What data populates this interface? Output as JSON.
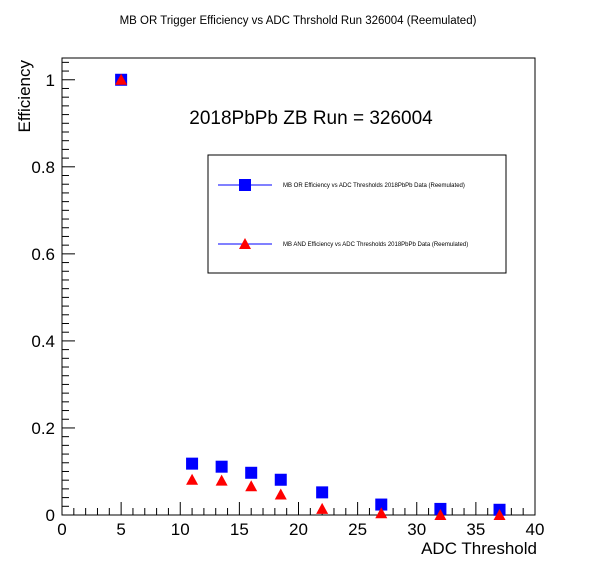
{
  "chart_data": {
    "type": "scatter",
    "title": "MB OR Trigger Efficiency vs ADC Thrshold Run 326004 (Reemulated)",
    "xlabel": "ADC Threshold",
    "ylabel": "Efficiency",
    "xlim": [
      0,
      40
    ],
    "ylim": [
      0,
      1.05
    ],
    "x_ticks": [
      "0",
      "5",
      "10",
      "15",
      "20",
      "25",
      "30",
      "35",
      "40"
    ],
    "y_ticks": [
      "0",
      "0.2",
      "0.4",
      "0.6",
      "0.8",
      "1"
    ],
    "annotation": "2018PbPb ZB Run = 326004",
    "legend_position": "upper-right",
    "grid": false,
    "series": [
      {
        "name": "MB OR Efficiency vs ADC Thresholds 2018PbPb Data (Reemulated)",
        "marker": "square",
        "color": "#0000ff",
        "x": [
          5,
          11,
          13.5,
          16,
          18.5,
          22,
          27,
          32,
          37
        ],
        "y": [
          1.0,
          0.118,
          0.111,
          0.097,
          0.081,
          0.052,
          0.024,
          0.014,
          0.012
        ]
      },
      {
        "name": "MB AND Efficiency vs ADC Thresholds 2018PbPb Data (Reemulated)",
        "marker": "triangle",
        "color": "#ff0000",
        "x": [
          5,
          11,
          13.5,
          16,
          18.5,
          22,
          27,
          32,
          37
        ],
        "y": [
          1.0,
          0.081,
          0.079,
          0.066,
          0.047,
          0.014,
          0.004,
          0.0,
          0.0
        ]
      }
    ]
  }
}
